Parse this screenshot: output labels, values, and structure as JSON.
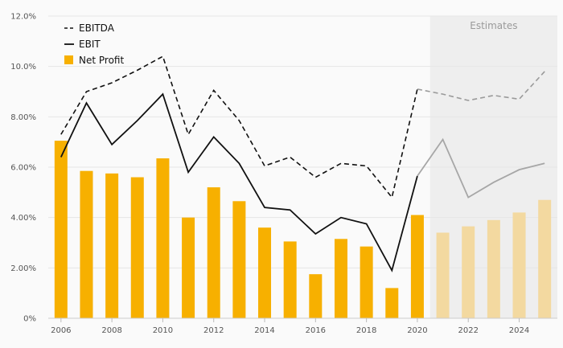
{
  "chart_data": {
    "type": "bar",
    "x": [
      2006,
      2007,
      2008,
      2009,
      2010,
      2011,
      2012,
      2013,
      2014,
      2015,
      2016,
      2017,
      2018,
      2019,
      2020,
      2021,
      2022,
      2023,
      2024,
      2025
    ],
    "x_tick_labels": [
      "2006",
      "2008",
      "2010",
      "2012",
      "2014",
      "2016",
      "2018",
      "2020",
      "2022",
      "2024"
    ],
    "y_tick_labels": [
      "0%",
      "2.00%",
      "4.00%",
      "6.00%",
      "8.00%",
      "10.0%",
      "12.0%"
    ],
    "ylim": [
      0,
      12
    ],
    "estimate_start": 2021,
    "estimates_label": "Estimates",
    "legend_position": "top-left",
    "grid": true,
    "series": [
      {
        "name": "EBITDA",
        "type": "line",
        "style": "dashed",
        "color": "#111111",
        "estimate_color": "#9a9a9a",
        "values": [
          7.3,
          9.0,
          9.35,
          9.85,
          10.4,
          7.3,
          9.05,
          7.85,
          6.05,
          6.4,
          5.6,
          6.15,
          6.05,
          4.8,
          9.1,
          8.9,
          8.65,
          8.85,
          8.7,
          9.8
        ]
      },
      {
        "name": "EBIT",
        "type": "line",
        "style": "solid",
        "color": "#111111",
        "estimate_color": "#a6a6a6",
        "values": [
          6.4,
          8.55,
          6.9,
          7.85,
          8.9,
          5.8,
          7.2,
          6.15,
          4.4,
          4.3,
          3.35,
          4.0,
          3.75,
          1.9,
          5.65,
          7.1,
          4.8,
          5.4,
          5.9,
          6.15
        ]
      },
      {
        "name": "Net Profit",
        "type": "bar",
        "color": "#f7b000",
        "estimate_color": "#f3d9a0",
        "values": [
          7.05,
          5.85,
          5.75,
          5.6,
          6.35,
          4.0,
          5.2,
          4.65,
          3.6,
          3.05,
          1.75,
          3.15,
          2.85,
          1.2,
          4.1,
          3.4,
          3.65,
          3.9,
          4.2,
          4.7
        ]
      }
    ]
  }
}
